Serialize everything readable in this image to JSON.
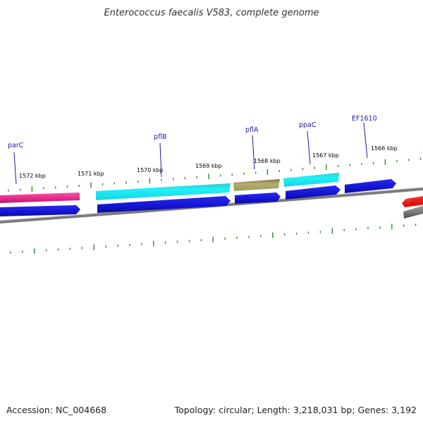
{
  "title": "Enterococcus faecalis V583, complete genome",
  "footer": {
    "accession": "Accession: NC_004668",
    "topology": "Topology: circular; Length: 3,218,031 bp; Genes: 3,192"
  },
  "kbp_labels": [
    "1572 kbp",
    "1571 kbp",
    "1570 kbp",
    "1569 kbp",
    "1568 kbp",
    "1567 kbp",
    "1566 kbp"
  ],
  "genes": [
    {
      "name": "parC",
      "color": "#e8288a"
    },
    {
      "name": "pflB",
      "color": "#22e6f0"
    },
    {
      "name": "pflA",
      "color": "#a8a060"
    },
    {
      "name": "ppaC",
      "color": "#22e6f0"
    },
    {
      "name": "EF1610",
      "color": "#1414d2"
    }
  ],
  "colors": {
    "cds": "#1414d2",
    "backbone": "#7a7a7a",
    "ticks": "#2e8b2e",
    "partial_red": "#ff1a1a",
    "label": "#1a1aa8"
  }
}
